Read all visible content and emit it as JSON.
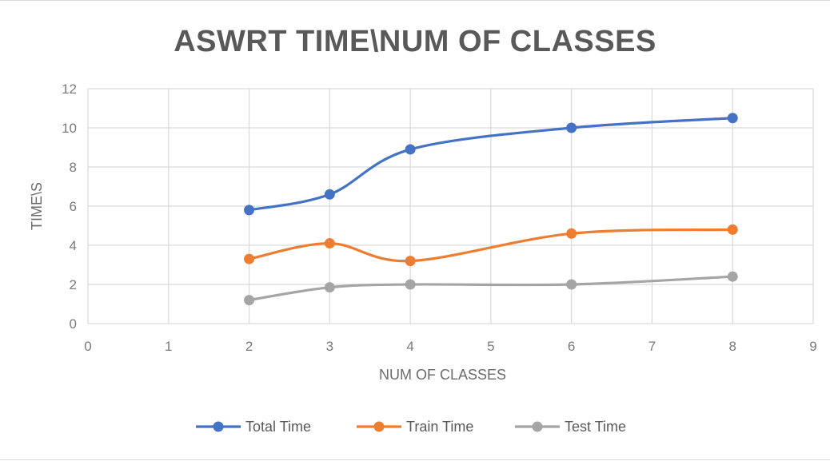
{
  "chart_data": {
    "type": "line",
    "title": "ASWRT TIME\\NUM OF CLASSES",
    "xlabel": "NUM OF CLASSES",
    "ylabel": "TIME\\S",
    "xlim": [
      0,
      9
    ],
    "ylim": [
      0,
      12
    ],
    "xticks": [
      "0",
      "1",
      "2",
      "3",
      "4",
      "5",
      "6",
      "7",
      "8",
      "9"
    ],
    "yticks": [
      "0",
      "2",
      "4",
      "6",
      "8",
      "10",
      "12"
    ],
    "x": [
      2,
      3,
      4,
      6,
      8
    ],
    "series": [
      {
        "name": "Total Time",
        "color": "#4472c4",
        "values": [
          5.8,
          6.6,
          8.9,
          10.0,
          10.5
        ]
      },
      {
        "name": "Train Time",
        "color": "#ed7d31",
        "values": [
          3.3,
          4.1,
          3.2,
          4.6,
          4.8
        ]
      },
      {
        "name": "Test Time",
        "color": "#a5a5a5",
        "values": [
          1.2,
          1.85,
          2.0,
          2.0,
          2.4
        ]
      }
    ],
    "grid": true,
    "smooth": true,
    "legend_position": "bottom"
  }
}
